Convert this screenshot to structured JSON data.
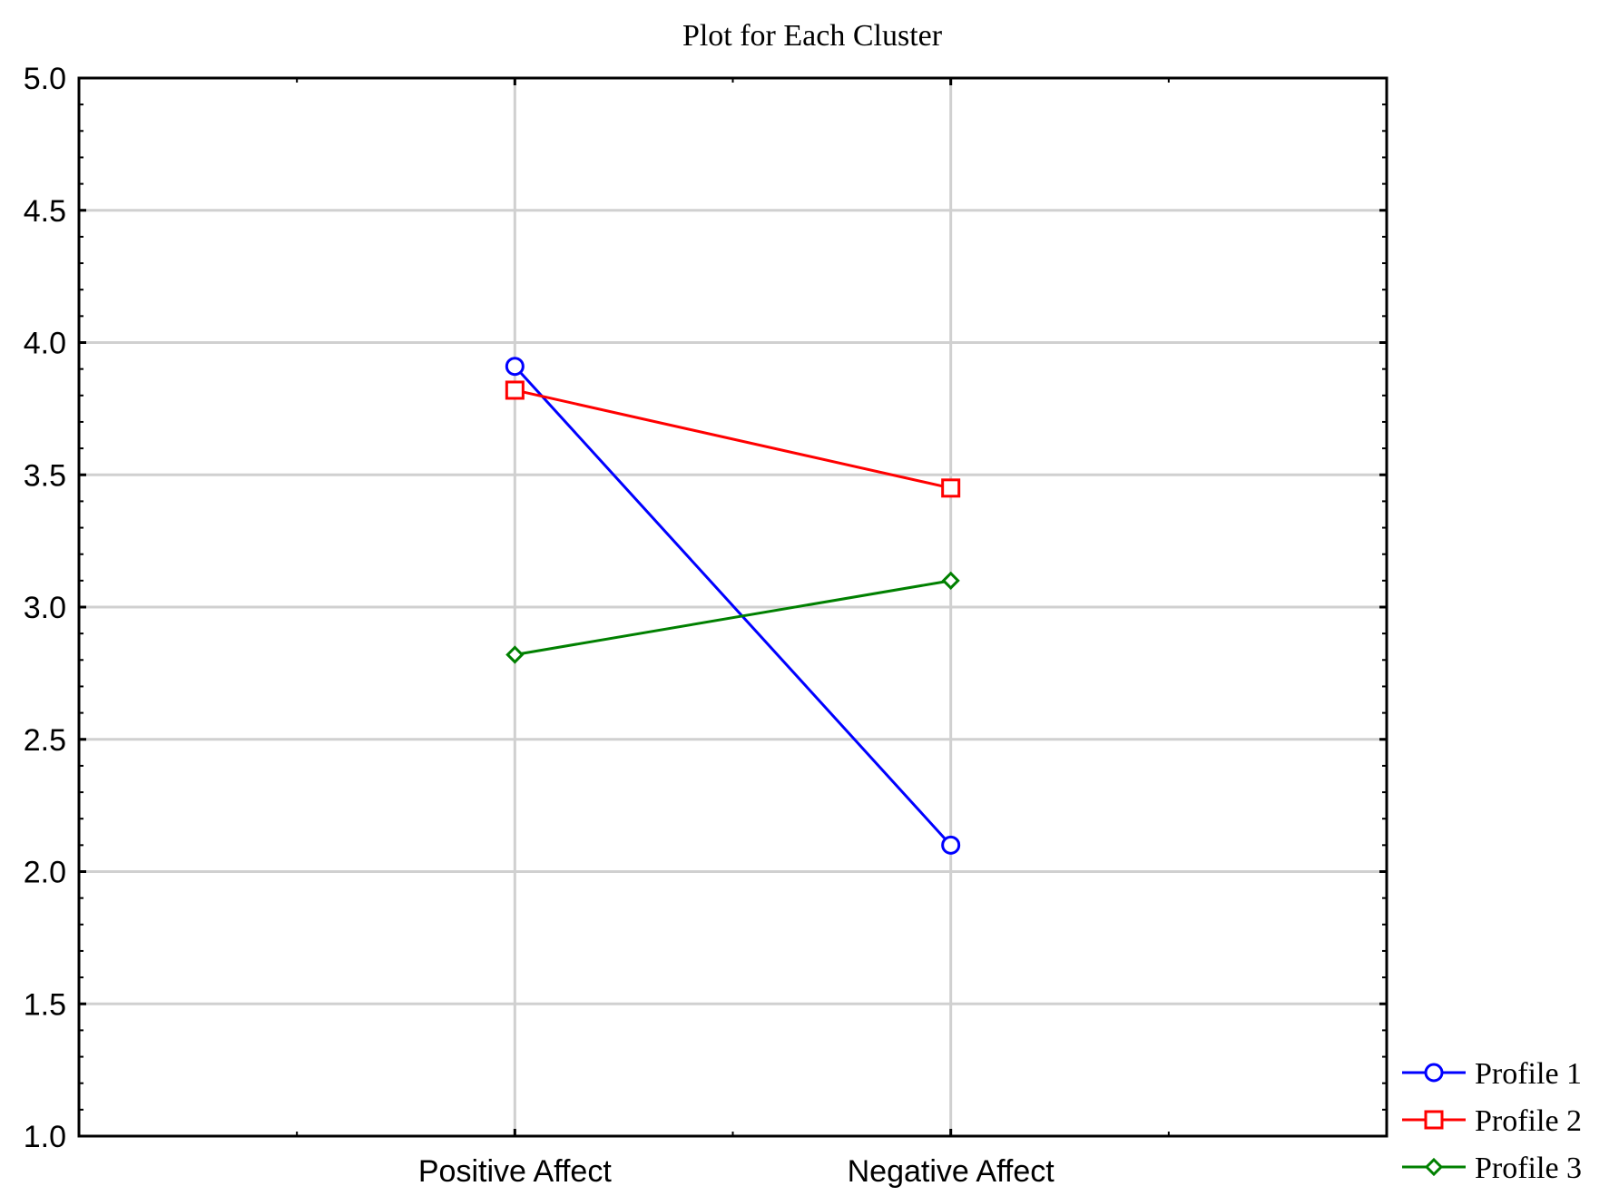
{
  "chart_data": {
    "type": "line",
    "title": "Plot for Each Cluster",
    "xlabel": "",
    "ylabel": "",
    "categories": [
      "Positive Affect",
      "Negative Affect"
    ],
    "ylim": [
      1.0,
      5.0
    ],
    "yticks": [
      "1.0",
      "1.5",
      "2.0",
      "2.5",
      "3.0",
      "3.5",
      "4.0",
      "4.5",
      "5.0"
    ],
    "grid": true,
    "legend_position": "bottom-right, outside plot",
    "series": [
      {
        "name": "Profile 1",
        "values": [
          3.91,
          2.1
        ],
        "color": "#0000ff",
        "marker": "circle"
      },
      {
        "name": "Profile 2",
        "values": [
          3.82,
          3.45
        ],
        "color": "#ff0000",
        "marker": "square"
      },
      {
        "name": "Profile 3",
        "values": [
          2.82,
          3.1
        ],
        "color": "#008000",
        "marker": "diamond"
      }
    ]
  }
}
